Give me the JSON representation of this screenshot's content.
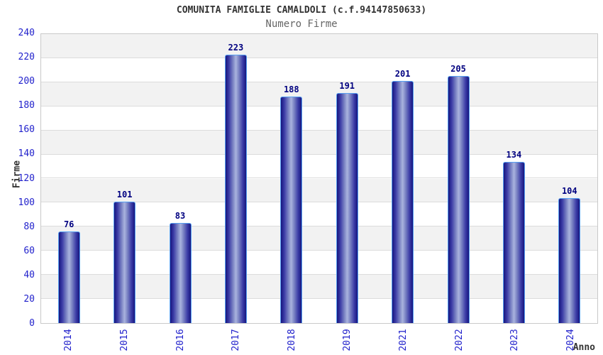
{
  "header": {
    "title": "COMUNITA FAMIGLIE CAMALDOLI (c.f.94147850633)",
    "subtitle": "Numero Firme"
  },
  "chart_data": {
    "type": "bar",
    "title": "COMUNITA FAMIGLIE CAMALDOLI (c.f.94147850633)",
    "subtitle": "Numero Firme",
    "categories": [
      "2014",
      "2015",
      "2016",
      "2017",
      "2018",
      "2019",
      "2021",
      "2022",
      "2023",
      "2024"
    ],
    "values": [
      76,
      101,
      83,
      223,
      188,
      191,
      201,
      205,
      134,
      104
    ],
    "xlabel": "Anno",
    "ylabel": "Firme",
    "ylim": [
      0,
      240
    ],
    "ytick_step": 20,
    "ytick_labels": [
      "0",
      "20",
      "40",
      "60",
      "80",
      "100",
      "120",
      "140",
      "160",
      "180",
      "200",
      "220",
      "240"
    ],
    "grid": "horizontal alternating bands",
    "legend": "none",
    "value_labels_shown": true,
    "x_tick_rotation_degrees": -90
  },
  "colors": {
    "background": "#ffffff",
    "title_text": "#333333",
    "subtitle_text": "#666666",
    "tick_label_text": "#2222cc",
    "value_label_text": "#000080",
    "axis_title_text": "#333333",
    "band_gray": "#f2f2f2",
    "band_white": "#ffffff",
    "grid_line": "#dcdcdc",
    "plot_border": "#c9c9c9",
    "bar_edge_dark": "#16167e",
    "bar_center_light": "#aab3de",
    "bar_border": "#57a0f2"
  }
}
